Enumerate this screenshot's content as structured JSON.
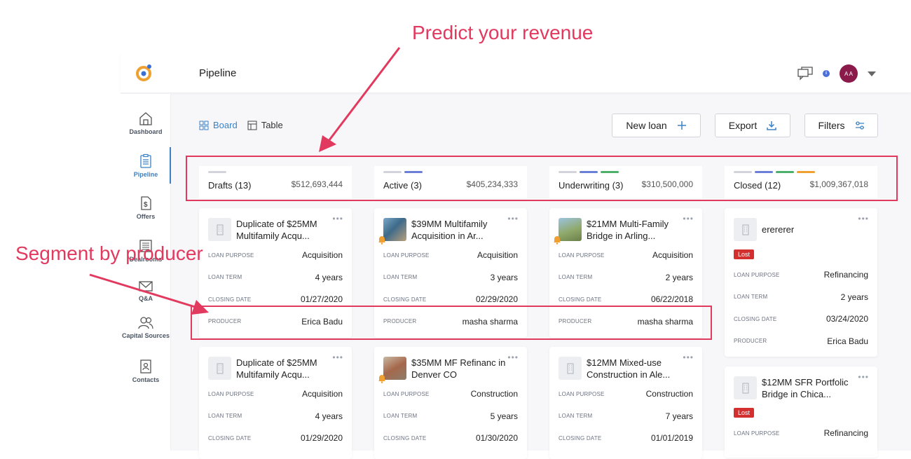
{
  "header": {
    "page_title": "Pipeline"
  },
  "sidebar": {
    "items": [
      {
        "label": "Dashboard",
        "icon": "home-icon"
      },
      {
        "label": "Pipeline",
        "icon": "clipboard-icon"
      },
      {
        "label": "Offers",
        "icon": "dollar-doc-icon"
      },
      {
        "label": "Dealrooms",
        "icon": "doc-list-icon"
      },
      {
        "label": "Q&A",
        "icon": "envelope-icon"
      },
      {
        "label": "Capital Sources",
        "icon": "people-icon"
      },
      {
        "label": "Contacts",
        "icon": "contact-card-icon"
      }
    ]
  },
  "view": {
    "board_label": "Board",
    "table_label": "Table"
  },
  "actions": {
    "new_loan": "New loan",
    "export": "Export",
    "filters": "Filters"
  },
  "avatar_initials": "A A",
  "columns": [
    {
      "name": "Drafts (13)",
      "amount": "$512,693,444",
      "bar_colors": [
        "#d1d5db"
      ],
      "cards": [
        {
          "title": "Duplicate of $25MM Multifamily Acqu...",
          "rows": [
            [
              "LOAN PURPOSE",
              "Acquisition"
            ],
            [
              "LOAN TERM",
              "4 years"
            ],
            [
              "CLOSING DATE",
              "01/27/2020"
            ],
            [
              "PRODUCER",
              "Erica Badu"
            ]
          ]
        },
        {
          "title": "Duplicate of $25MM Multifamily Acqu...",
          "rows": [
            [
              "LOAN PURPOSE",
              "Acquisition"
            ],
            [
              "LOAN TERM",
              "4 years"
            ],
            [
              "CLOSING DATE",
              "01/29/2020"
            ]
          ]
        }
      ]
    },
    {
      "name": "Active (3)",
      "amount": "$405,234,333",
      "bar_colors": [
        "#d1d5db",
        "#6b7fd8"
      ],
      "cards": [
        {
          "title": "$39MM Multifamily Acquisition in Ar...",
          "rows": [
            [
              "LOAN PURPOSE",
              "Acquisition"
            ],
            [
              "LOAN TERM",
              "3 years"
            ],
            [
              "CLOSING DATE",
              "02/29/2020"
            ],
            [
              "PRODUCER",
              "masha sharma"
            ]
          ]
        },
        {
          "title": "$35MM MF Refinanc in Denver CO",
          "rows": [
            [
              "LOAN PURPOSE",
              "Construction"
            ],
            [
              "LOAN TERM",
              "5 years"
            ],
            [
              "CLOSING DATE",
              "01/30/2020"
            ]
          ]
        }
      ]
    },
    {
      "name": "Underwriting (3)",
      "amount": "$310,500,000",
      "bar_colors": [
        "#d1d5db",
        "#6b7fd8",
        "#4caf6a"
      ],
      "cards": [
        {
          "title": "$21MM Multi-Family Bridge in Arling...",
          "rows": [
            [
              "LOAN PURPOSE",
              "Acquisition"
            ],
            [
              "LOAN TERM",
              "2 years"
            ],
            [
              "CLOSING DATE",
              "06/22/2018"
            ],
            [
              "PRODUCER",
              "masha sharma"
            ]
          ]
        },
        {
          "title": "$12MM Mixed-use Construction in Ale...",
          "rows": [
            [
              "LOAN PURPOSE",
              "Construction"
            ],
            [
              "LOAN TERM",
              "7 years"
            ],
            [
              "CLOSING DATE",
              "01/01/2019"
            ]
          ]
        }
      ]
    },
    {
      "name": "Closed (12)",
      "amount": "$1,009,367,018",
      "bar_colors": [
        "#d1d5db",
        "#6b7fd8",
        "#4caf6a",
        "#f0a030"
      ],
      "cards": [
        {
          "title": "erererer",
          "badge": "Lost",
          "rows": [
            [
              "LOAN PURPOSE",
              "Refinancing"
            ],
            [
              "LOAN TERM",
              "2 years"
            ],
            [
              "CLOSING DATE",
              "03/24/2020"
            ],
            [
              "PRODUCER",
              "Erica Badu"
            ]
          ]
        },
        {
          "title": "$12MM SFR Portfolic Bridge in Chica...",
          "badge": "Lost",
          "rows": [
            [
              "LOAN PURPOSE",
              "Refinancing"
            ]
          ]
        }
      ]
    }
  ],
  "annotations": {
    "revenue": "Predict your revenue",
    "producer": "Segment by producer"
  },
  "colors": {
    "accent": "#3b82c4",
    "annotation": "#e2395f",
    "lost": "#d32f2f"
  }
}
